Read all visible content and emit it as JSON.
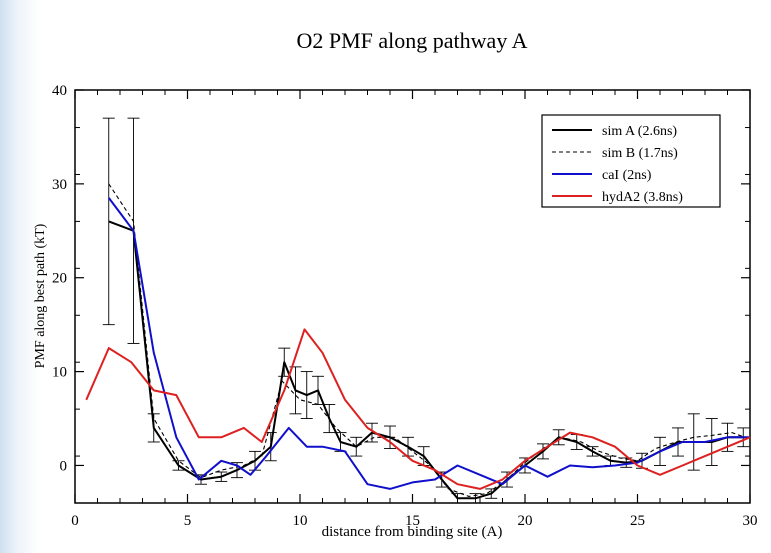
{
  "chart_data": {
    "type": "line",
    "title": "O2 PMF along pathway A",
    "xlabel": "distance from binding site (A)",
    "ylabel": "PMF along best path (kT)",
    "xlim": [
      0,
      30
    ],
    "ylim": [
      -4,
      40
    ],
    "xticks": [
      "0",
      "5",
      "10",
      "15",
      "20",
      "25",
      "30"
    ],
    "yticks": [
      "0",
      "10",
      "20",
      "30",
      "40"
    ],
    "grid": false,
    "legend_position": "top-right",
    "series": [
      {
        "name": "sim A (2.6ns)",
        "color": "#000000",
        "style": "solid",
        "x": [
          1.5,
          2.6,
          3.5,
          4.6,
          5.6,
          6.5,
          7.2,
          8.0,
          8.7,
          9.3,
          9.8,
          10.3,
          10.8,
          11.3,
          11.8,
          12.5,
          13.2,
          14.0,
          14.8,
          15.5,
          16.3,
          17.0,
          17.8,
          18.5,
          19.2,
          20.0,
          20.8,
          21.5,
          22.3,
          23.0,
          23.8,
          24.5,
          25.2,
          26.0,
          26.8,
          27.5,
          28.3,
          29.0,
          29.7
        ],
        "y": [
          26,
          25,
          4,
          0,
          -1.5,
          -1.2,
          -0.5,
          0.5,
          2,
          11,
          8,
          7.5,
          8,
          5,
          2.5,
          2,
          3.5,
          3,
          2,
          1,
          -1.5,
          -3.5,
          -3.5,
          -3,
          -1.5,
          0,
          1.5,
          3,
          2.5,
          1.5,
          0.5,
          0.3,
          0.5,
          1.5,
          2.5,
          2.5,
          2.5,
          3,
          3
        ],
        "err": [
          11,
          12,
          1.5,
          0.5,
          0.5,
          0.5,
          0.8,
          1,
          1.5,
          1.5,
          2.5,
          2.5,
          1.5,
          1.5,
          1,
          1,
          1,
          1.2,
          1,
          1,
          0.8,
          0.5,
          0.5,
          0.5,
          0.8,
          0.8,
          0.8,
          0.8,
          0.8,
          0.5,
          0.5,
          0.5,
          0.8,
          1.5,
          1.5,
          3,
          2.5,
          1.5,
          1
        ]
      },
      {
        "name": "sim B (1.7ns)",
        "color": "#000000",
        "style": "dashed",
        "x": [
          1.5,
          2.6,
          3.5,
          4.6,
          5.6,
          6.5,
          7.5,
          8.3,
          9.2,
          10.0,
          10.8,
          11.6,
          12.5,
          13.3,
          14.2,
          15.0,
          15.8,
          16.6,
          17.5,
          18.3,
          19.2,
          20.0,
          20.8,
          21.6,
          22.5,
          23.3,
          24.2,
          25.0,
          25.8,
          26.7,
          27.5,
          28.3,
          29.2,
          30.0
        ],
        "y": [
          30,
          26,
          5,
          0.5,
          -1.3,
          -0.5,
          0,
          1,
          9,
          7,
          6.5,
          4,
          2,
          3,
          3,
          1.5,
          0,
          -2.5,
          -3.3,
          -3,
          -1.5,
          0.3,
          1.8,
          3,
          2.5,
          1.5,
          0.8,
          0.5,
          1.8,
          2.5,
          3,
          3.2,
          3.5,
          2.8
        ]
      },
      {
        "name": "caI (2ns)",
        "color": "#1010cc",
        "style": "solid",
        "x": [
          1.5,
          2.6,
          3.5,
          4.5,
          5.5,
          6.5,
          7.2,
          7.8,
          8.5,
          9.5,
          10.3,
          11.0,
          12.0,
          13.0,
          14.0,
          15.0,
          16.0,
          17.0,
          18.0,
          19.0,
          20.0,
          21.0,
          22.0,
          23.0,
          24.0,
          25.0,
          26.0,
          27.0,
          28.0,
          29.0,
          30.0
        ],
        "y": [
          28.5,
          25,
          12,
          3,
          -1.5,
          0.5,
          0,
          -1,
          1,
          4,
          2,
          2,
          1.5,
          -2,
          -2.5,
          -1.8,
          -1.5,
          0,
          -1,
          -2,
          0,
          -1.2,
          0,
          -0.2,
          0,
          0.3,
          1.5,
          2.5,
          2.5,
          3,
          3
        ]
      },
      {
        "name": "hydA2 (3.8ns)",
        "color": "#dd2020",
        "style": "solid",
        "x": [
          0.5,
          1.5,
          2.5,
          3.5,
          4.5,
          5.5,
          6.5,
          7.5,
          8.3,
          9.3,
          10.2,
          11.0,
          12.0,
          13.0,
          14.0,
          15.0,
          16.0,
          17.0,
          18.0,
          19.0,
          20.0,
          21.0,
          22.0,
          23.0,
          24.0,
          25.0,
          26.0,
          27.0,
          28.0,
          29.0,
          30.0
        ],
        "y": [
          7,
          12.5,
          11,
          8,
          7.5,
          3,
          3,
          4,
          2.5,
          8,
          14.5,
          12,
          7,
          4,
          2.5,
          0.5,
          -0.5,
          -2,
          -2.5,
          -1.5,
          0.5,
          2,
          3.5,
          3,
          2,
          0,
          -1,
          0,
          1,
          2,
          3
        ]
      }
    ]
  }
}
